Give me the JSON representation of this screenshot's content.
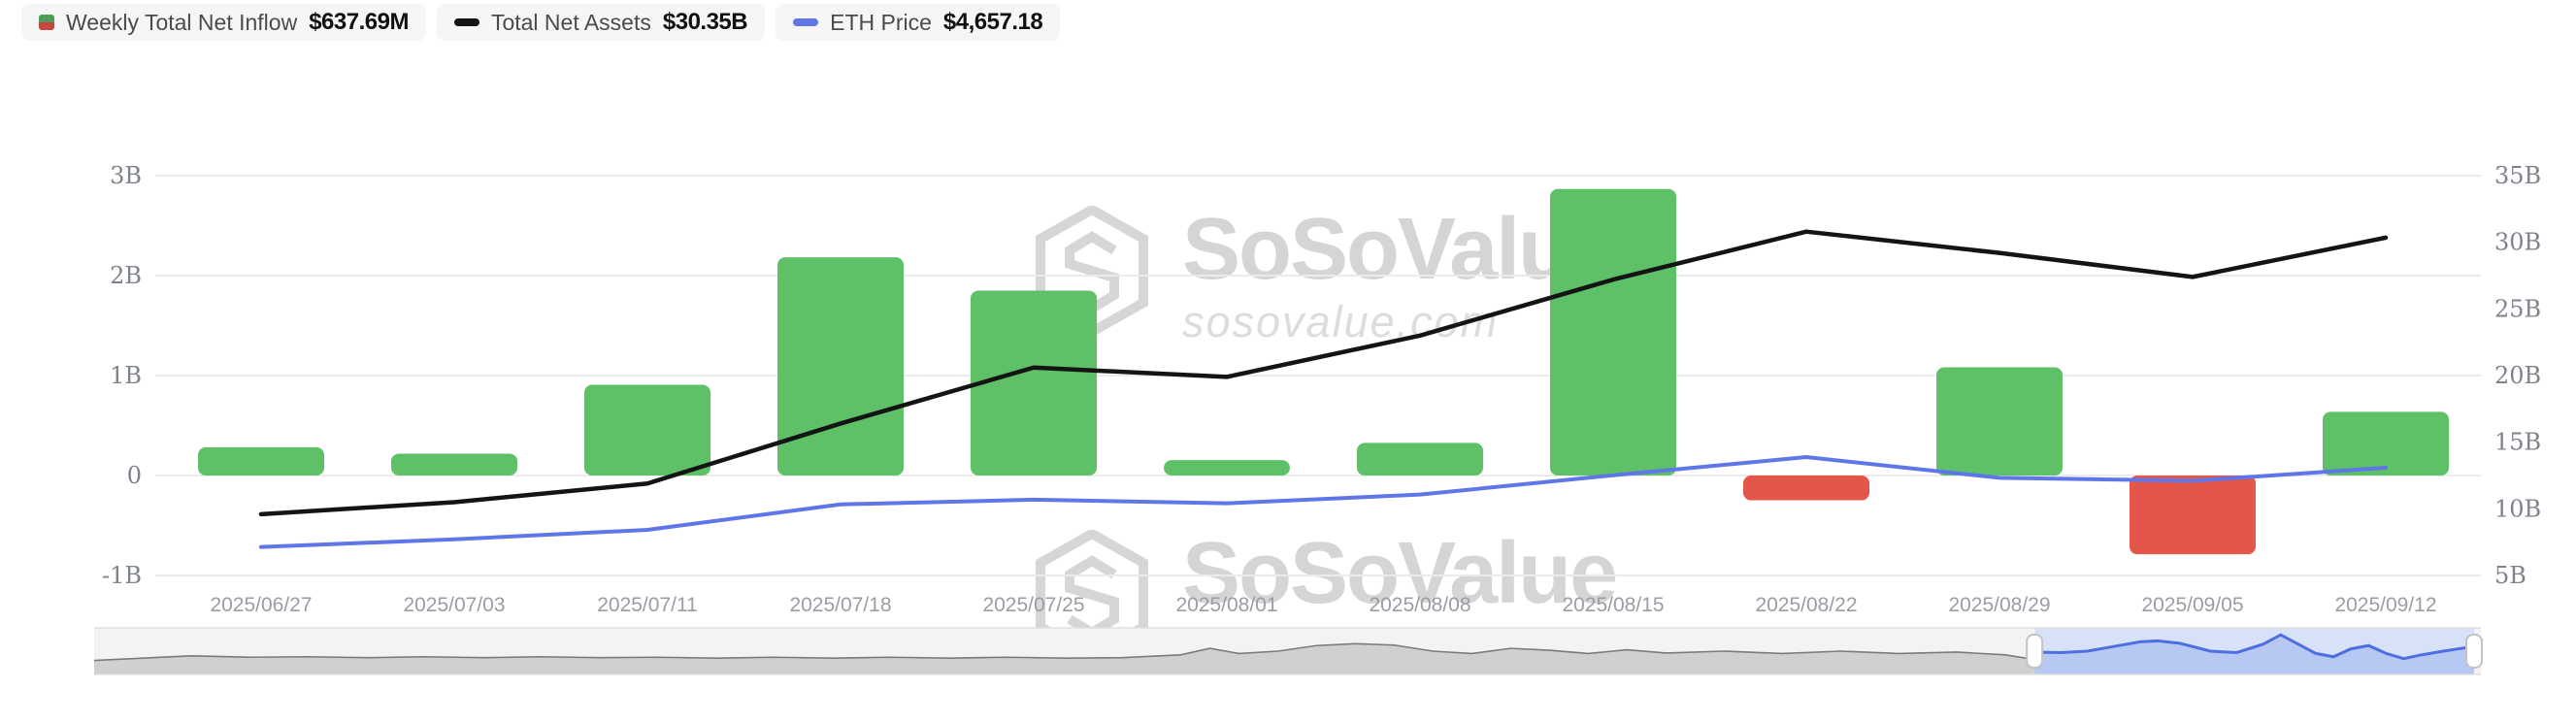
{
  "legend": {
    "items": [
      {
        "id": "inflow",
        "label": "Weekly Total Net Inflow",
        "value": "$637.69M"
      },
      {
        "id": "net-assets",
        "label": "Total Net Assets",
        "value": "$30.35B"
      },
      {
        "id": "eth-price",
        "label": "ETH Price",
        "value": "$4,657.18"
      }
    ]
  },
  "watermark": {
    "title": "SoSoValue",
    "subtitle": "sosovalue.com"
  },
  "axes": {
    "left": {
      "ticks": [
        {
          "label": "3B",
          "value": 3
        },
        {
          "label": "2B",
          "value": 2
        },
        {
          "label": "1B",
          "value": 1
        },
        {
          "label": "0",
          "value": 0
        },
        {
          "label": "-1B",
          "value": -1
        }
      ]
    },
    "right": {
      "ticks": [
        {
          "label": "35B",
          "value": 35
        },
        {
          "label": "30B",
          "value": 30
        },
        {
          "label": "25B",
          "value": 25
        },
        {
          "label": "20B",
          "value": 20
        },
        {
          "label": "15B",
          "value": 15
        },
        {
          "label": "10B",
          "value": 10
        },
        {
          "label": "5B",
          "value": 5
        }
      ]
    }
  },
  "chart_data": {
    "type": "bar+line combo",
    "categories": [
      "2025/06/27",
      "2025/07/03",
      "2025/07/11",
      "2025/07/18",
      "2025/07/25",
      "2025/08/01",
      "2025/08/08",
      "2025/08/15",
      "2025/08/22",
      "2025/08/29",
      "2025/09/05",
      "2025/09/12"
    ],
    "series": [
      {
        "name": "Weekly Total Net Inflow",
        "type": "bar",
        "axis": "left",
        "unit": "USD millions",
        "values": [
          283,
          219,
          908,
          2183,
          1850,
          154,
          326,
          2867,
          -248,
          1083,
          -788,
          637.69
        ]
      },
      {
        "name": "Total Net Assets",
        "type": "line",
        "axis": "right",
        "unit": "USD billions",
        "values": [
          9.6,
          10.5,
          11.9,
          16.4,
          20.6,
          19.9,
          23.0,
          27.2,
          30.8,
          29.2,
          27.4,
          30.35
        ]
      },
      {
        "name": "ETH Price",
        "type": "line",
        "axis": "hidden",
        "unit": "USD",
        "values": [
          2480,
          2690,
          2950,
          3650,
          3780,
          3680,
          3920,
          4450,
          4950,
          4380,
          4300,
          4657.18
        ]
      }
    ],
    "left_axis_range_billions": [
      -1.2,
      3.05
    ],
    "right_axis_range_billions": [
      5,
      35
    ],
    "grid": "horizontal-only",
    "legend_position": "top-left"
  },
  "navigator": {
    "selected_fraction_start": 0.813,
    "unselected_points": [
      [
        0,
        0.7
      ],
      [
        0.03,
        0.64
      ],
      [
        0.05,
        0.6
      ],
      [
        0.08,
        0.63
      ],
      [
        0.11,
        0.62
      ],
      [
        0.14,
        0.64
      ],
      [
        0.17,
        0.62
      ],
      [
        0.2,
        0.64
      ],
      [
        0.23,
        0.62
      ],
      [
        0.26,
        0.64
      ],
      [
        0.29,
        0.63
      ],
      [
        0.32,
        0.65
      ],
      [
        0.35,
        0.63
      ],
      [
        0.38,
        0.65
      ],
      [
        0.41,
        0.63
      ],
      [
        0.44,
        0.65
      ],
      [
        0.47,
        0.63
      ],
      [
        0.5,
        0.65
      ],
      [
        0.53,
        0.64
      ],
      [
        0.56,
        0.58
      ],
      [
        0.575,
        0.44
      ],
      [
        0.59,
        0.55
      ],
      [
        0.61,
        0.5
      ],
      [
        0.63,
        0.38
      ],
      [
        0.65,
        0.34
      ],
      [
        0.67,
        0.37
      ],
      [
        0.69,
        0.5
      ],
      [
        0.71,
        0.55
      ],
      [
        0.73,
        0.44
      ],
      [
        0.75,
        0.48
      ],
      [
        0.77,
        0.55
      ],
      [
        0.79,
        0.47
      ],
      [
        0.81,
        0.54
      ],
      [
        0.84,
        0.5
      ],
      [
        0.87,
        0.55
      ],
      [
        0.9,
        0.5
      ],
      [
        0.93,
        0.55
      ],
      [
        0.96,
        0.52
      ],
      [
        0.985,
        0.58
      ],
      [
        1,
        0.68
      ]
    ],
    "selected_points": [
      [
        0,
        0.52
      ],
      [
        0.06,
        0.53
      ],
      [
        0.12,
        0.5
      ],
      [
        0.18,
        0.4
      ],
      [
        0.24,
        0.3
      ],
      [
        0.28,
        0.28
      ],
      [
        0.33,
        0.33
      ],
      [
        0.4,
        0.5
      ],
      [
        0.46,
        0.53
      ],
      [
        0.52,
        0.35
      ],
      [
        0.56,
        0.15
      ],
      [
        0.6,
        0.35
      ],
      [
        0.64,
        0.55
      ],
      [
        0.68,
        0.62
      ],
      [
        0.72,
        0.45
      ],
      [
        0.76,
        0.38
      ],
      [
        0.8,
        0.55
      ],
      [
        0.84,
        0.66
      ],
      [
        0.88,
        0.58
      ],
      [
        0.93,
        0.5
      ],
      [
        1,
        0.4
      ]
    ]
  },
  "colors": {
    "bar_positive": "#5ec167",
    "bar_negative": "#e4564a",
    "net_assets_line": "#141414",
    "eth_price_line": "#5f76e8",
    "grid": "#ebebeb",
    "tick_text": "#7e828b",
    "date_text": "#9a9da3",
    "legend_candle_green": "#4d9d58",
    "legend_candle_red": "#c4493f",
    "nav_bg": "#f3f3f3",
    "nav_fill": "#d0d0d0",
    "nav_line": "#7b7b7b",
    "nav_border": "#e0e0e0",
    "nav_sel_bg": "#d7e1f8",
    "nav_sel_fill": "#b7c9f3",
    "nav_sel_line": "#4d6fe0",
    "nav_handle_border": "#c3c3c7"
  }
}
